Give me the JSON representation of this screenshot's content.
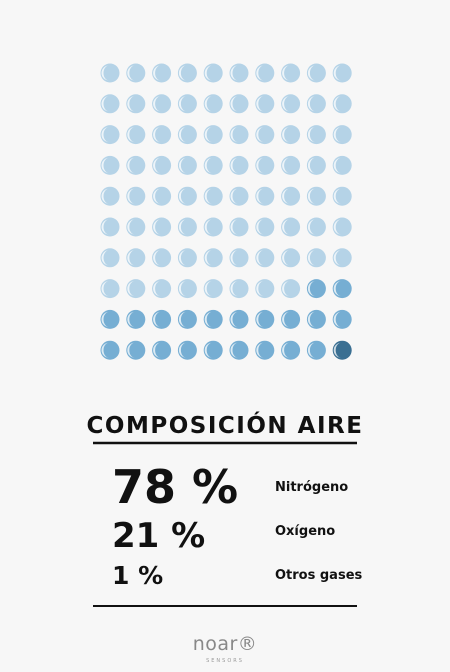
{
  "chart_data": {
    "type": "waffle",
    "title": "COMPOSICIÓN AIRE",
    "series": [
      {
        "name": "Nitrógeno",
        "color": "#b5d3e7",
        "values": 78,
        "value_labels": "78 %"
      },
      {
        "name": "Oxígeno",
        "color": "#76aed3",
        "values": 21,
        "value_labels": "21 %"
      },
      {
        "name": "Otros gases",
        "color": "#3a6f92",
        "values": 1,
        "value_labels": "1 %"
      }
    ]
  },
  "brand": {
    "name": "noar®",
    "tagline": "SENSORS"
  }
}
